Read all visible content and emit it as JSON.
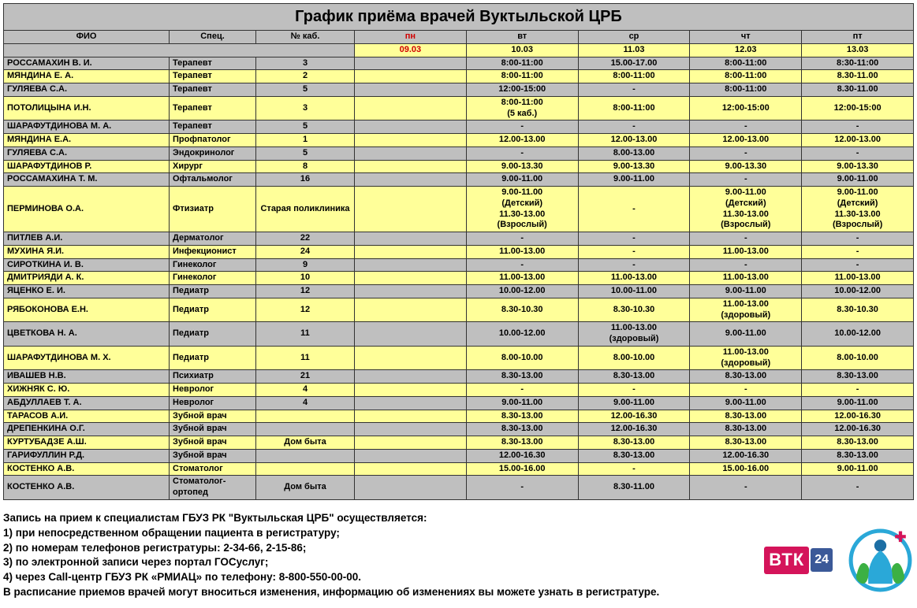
{
  "title": "График приёма врачей Вуктыльской ЦРБ",
  "colors": {
    "grey": "#bfbfbf",
    "yellow": "#ffff99",
    "red": "#d00000",
    "black": "#000000",
    "border": "#333333"
  },
  "columns": {
    "name": "ФИО",
    "spec": "Спец.",
    "room": "№ каб.",
    "days": [
      {
        "short": "пн",
        "date": "09.03",
        "holiday": true
      },
      {
        "short": "вт",
        "date": "10.03",
        "holiday": false
      },
      {
        "short": "ср",
        "date": "11.03",
        "holiday": false
      },
      {
        "short": "чт",
        "date": "12.03",
        "holiday": false
      },
      {
        "short": "пт",
        "date": "13.03",
        "holiday": false
      }
    ]
  },
  "rows": [
    {
      "color": "grey",
      "name": "РОССАМАХИН В. И.",
      "spec": "Терапевт",
      "room": "3",
      "cells": [
        "",
        "8:00-11:00",
        "15.00-17.00",
        "8:00-11:00",
        "8:30-11:00"
      ]
    },
    {
      "color": "yellow",
      "name": "МЯНДИНА Е. А.",
      "spec": "Терапевт",
      "room": "2",
      "cells": [
        "",
        "8:00-11:00",
        "8:00-11:00",
        "8:00-11:00",
        "8.30-11.00"
      ]
    },
    {
      "color": "grey",
      "name": "ГУЛЯЕВА С.А.",
      "spec": "Терапевт",
      "room": "5",
      "cells": [
        "",
        "12:00-15:00",
        "-",
        "8:00-11:00",
        "8.30-11.00"
      ]
    },
    {
      "color": "yellow",
      "name": "ПОТОЛИЦЫНА И.Н.",
      "spec": "Терапевт",
      "room": "3",
      "cells": [
        "",
        "8:00-11:00\n(5 каб.)",
        "8:00-11:00",
        "12:00-15:00",
        "12:00-15:00"
      ]
    },
    {
      "color": "grey",
      "name": "ШАРАФУТДИНОВА М. А.",
      "spec": "Терапевт",
      "room": "5",
      "cells": [
        "",
        "-",
        "-",
        "-",
        "-"
      ]
    },
    {
      "color": "yellow",
      "name": "МЯНДИНА Е.А.",
      "spec": "Профпатолог",
      "room": "1",
      "cells": [
        "",
        "12.00-13.00",
        "12.00-13.00",
        "12.00-13.00",
        "12.00-13.00"
      ]
    },
    {
      "color": "grey",
      "name": "ГУЛЯЕВА С.А.",
      "spec": "Эндокринолог",
      "room": "5",
      "cells": [
        "",
        "-",
        "8.00-13.00",
        "-",
        "-"
      ]
    },
    {
      "color": "yellow",
      "name": "ШАРАФУТДИНОВ Р.",
      "spec": "Хирург",
      "room": "8",
      "cells": [
        "",
        "9.00-13.30",
        "9.00-13.30",
        "9.00-13.30",
        "9.00-13.30"
      ]
    },
    {
      "color": "grey",
      "name": "РОССАМАХИНА Т. М.",
      "spec": "Офтальмолог",
      "room": "16",
      "cells": [
        "",
        "9.00-11.00",
        "9.00-11.00",
        "-",
        "9.00-11.00"
      ]
    },
    {
      "color": "yellow",
      "name": "ПЕРМИНОВА О.А.",
      "spec": "Фтизиатр",
      "room": "Старая поликлиника",
      "cells": [
        "",
        "9.00-11.00\n(Детский)\n11.30-13.00\n(Взрослый)",
        "-",
        "9.00-11.00\n(Детский)\n11.30-13.00\n(Взрослый)",
        "9.00-11.00\n(Детский)\n11.30-13.00\n(Взрослый)"
      ]
    },
    {
      "color": "grey",
      "name": "ПИТЛЕВ А.И.",
      "spec": "Дерматолог",
      "room": "22",
      "cells": [
        "",
        "-",
        "-",
        "-",
        "-"
      ]
    },
    {
      "color": "yellow",
      "name": "МУХИНА Я.И.",
      "spec": "Инфекционист",
      "room": "24",
      "cells": [
        "",
        "11.00-13.00",
        "-",
        "11.00-13.00",
        "-"
      ]
    },
    {
      "color": "grey",
      "name": "СИРОТКИНА И. В.",
      "spec": "Гинеколог",
      "room": "9",
      "cells": [
        "",
        "-",
        "-",
        "-",
        "-"
      ]
    },
    {
      "color": "yellow",
      "name": "ДМИТРИЯДИ А. К.",
      "spec": "Гинеколог",
      "room": "10",
      "cells": [
        "",
        "11.00-13.00",
        "11.00-13.00",
        "11.00-13.00",
        "11.00-13.00"
      ]
    },
    {
      "color": "grey",
      "name": "ЯЦЕНКО Е. И.",
      "spec": "Педиатр",
      "room": "12",
      "cells": [
        "",
        "10.00-12.00",
        "10.00-11.00",
        "9.00-11.00",
        "10.00-12.00"
      ]
    },
    {
      "color": "yellow",
      "name": "РЯБОКОНОВА Е.Н.",
      "spec": "Педиатр",
      "room": "12",
      "cells": [
        "",
        "8.30-10.30",
        "8.30-10.30",
        "11.00-13.00\n(здоровый)",
        "8.30-10.30"
      ]
    },
    {
      "color": "grey",
      "name": "ЦВЕТКОВА Н. А.",
      "spec": "Педиатр",
      "room": "11",
      "cells": [
        "",
        "10.00-12.00",
        "11.00-13.00\n(здоровый)",
        "9.00-11.00",
        "10.00-12.00"
      ]
    },
    {
      "color": "yellow",
      "name": "ШАРАФУТДИНОВА М. Х.",
      "spec": "Педиатр",
      "room": "11",
      "cells": [
        "",
        "8.00-10.00",
        "8.00-10.00",
        "11.00-13.00\n(здоровый)",
        "8.00-10.00"
      ]
    },
    {
      "color": "grey",
      "name": "ИВАШЕВ Н.В.",
      "spec": "Психиатр",
      "room": "21",
      "cells": [
        "",
        "8.30-13.00",
        "8.30-13.00",
        "8.30-13.00",
        "8.30-13.00"
      ]
    },
    {
      "color": "yellow",
      "name": "ХИЖНЯК С. Ю.",
      "spec": "Невролог",
      "room": "4",
      "cells": [
        "",
        "-",
        "-",
        "-",
        "-"
      ]
    },
    {
      "color": "grey",
      "name": "АБДУЛЛАЕВ Т. А.",
      "spec": "Невролог",
      "room": "4",
      "cells": [
        "",
        "9.00-11.00",
        "9.00-11.00",
        "9.00-11.00",
        "9.00-11.00"
      ]
    },
    {
      "color": "yellow",
      "name": "ТАРАСОВ А.И.",
      "spec": "Зубной врач",
      "room": "",
      "cells": [
        "",
        "8.30-13.00",
        "12.00-16.30",
        "8.30-13.00",
        "12.00-16.30"
      ]
    },
    {
      "color": "grey",
      "name": "ДРЕПЕНКИНА О.Г.",
      "spec": "Зубной врач",
      "room": "",
      "cells": [
        "",
        "8.30-13.00",
        "12.00-16.30",
        "8.30-13.00",
        "12.00-16.30"
      ]
    },
    {
      "color": "yellow",
      "name": "КУРТУБАДЗЕ А.Ш.",
      "spec": "Зубной врач",
      "room": "Дом быта",
      "cells": [
        "",
        "8.30-13.00",
        "8.30-13.00",
        "8.30-13.00",
        "8.30-13.00"
      ]
    },
    {
      "color": "grey",
      "name": "ГАРИФУЛЛИН Р.Д.",
      "spec": "Зубной врач",
      "room": "",
      "cells": [
        "",
        "12.00-16.30",
        "8.30-13.00",
        "12.00-16.30",
        "8.30-13.00"
      ]
    },
    {
      "color": "yellow",
      "name": "КОСТЕНКО А.В.",
      "spec": "Стоматолог",
      "room": "",
      "cells": [
        "",
        "15.00-16.00",
        "-",
        "15.00-16.00",
        "9.00-11.00"
      ]
    },
    {
      "color": "grey",
      "name": "КОСТЕНКО А.В.",
      "spec": "Стоматолог-ортопед",
      "room": "Дом быта",
      "cells": [
        "",
        "-",
        "8.30-11.00",
        "-",
        "-"
      ]
    }
  ],
  "notes": [
    "Запись на прием к специалистам ГБУЗ РК \"Вуктыльская ЦРБ\" осуществляется:",
    "1) при непосредственном обращении пациента в регистратуру;",
    "2) по номерам телефонов регистратуры: 2-34-66, 2-15-86;",
    "3) по электронной записи через портал ГОСуслуг;",
    "4) через Call-центр ГБУЗ РК «РМИАЦ» по телефону: 8-800-550-00-00.",
    "В расписание приемов врачей могут вноситься изменения, информацию об изменениях вы можете узнать в регистратуре."
  ],
  "logos": {
    "btk_text": "ВТК",
    "btk_24": "24"
  }
}
